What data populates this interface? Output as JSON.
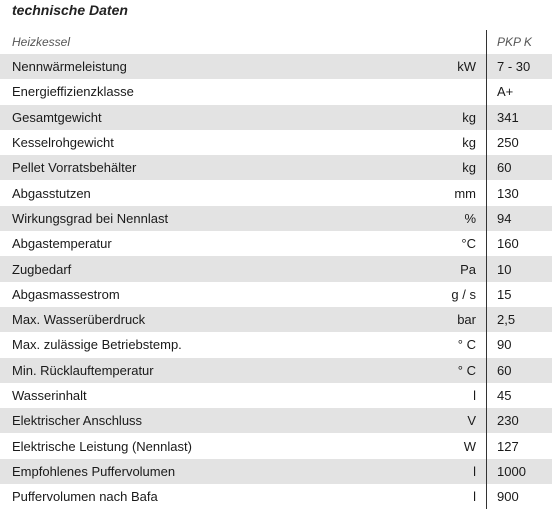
{
  "title": "technische Daten",
  "header": {
    "label": "Heizkessel",
    "unit": "",
    "value": "PKP K"
  },
  "rows": [
    {
      "label": "Nennwärmeleistung",
      "unit": "kW",
      "value": "7 - 30"
    },
    {
      "label": "Energieffizienzklasse",
      "unit": "",
      "value": "A+"
    },
    {
      "label": "Gesamtgewicht",
      "unit": "kg",
      "value": "341"
    },
    {
      "label": "Kesselrohgewicht",
      "unit": "kg",
      "value": "250"
    },
    {
      "label": "Pellet Vorratsbehälter",
      "unit": "kg",
      "value": "60"
    },
    {
      "label": "Abgasstutzen",
      "unit": "mm",
      "value": "130"
    },
    {
      "label": "Wirkungsgrad bei Nennlast",
      "unit": "%",
      "value": "94"
    },
    {
      "label": "Abgastemperatur",
      "unit": "°C",
      "value": "160"
    },
    {
      "label": "Zugbedarf",
      "unit": "Pa",
      "value": "10"
    },
    {
      "label": "Abgasmassestrom",
      "unit": "g / s",
      "value": "15"
    },
    {
      "label": "Max. Wasserüberdruck",
      "unit": "bar",
      "value": "2,5"
    },
    {
      "label": "Max. zulässige Betriebstemp.",
      "unit": "° C",
      "value": "90"
    },
    {
      "label": "Min. Rücklauftemperatur",
      "unit": "° C",
      "value": "60"
    },
    {
      "label": "Wasserinhalt",
      "unit": "l",
      "value": "45"
    },
    {
      "label": "Elektrischer Anschluss",
      "unit": "V",
      "value": "230"
    },
    {
      "label": "Elektrische Leistung (Nennlast)",
      "unit": "W",
      "value": "127"
    },
    {
      "label": "Empfohlenes Puffervolumen",
      "unit": "l",
      "value": "1000"
    },
    {
      "label": "Puffervolumen nach Bafa",
      "unit": "l",
      "value": "900"
    }
  ]
}
